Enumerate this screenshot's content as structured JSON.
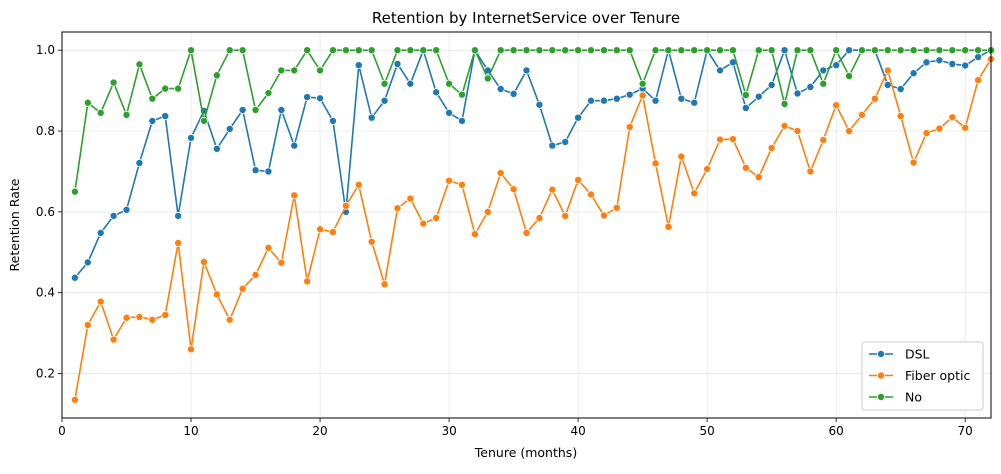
{
  "chart_data": {
    "type": "line",
    "title": "Retention by InternetService over Tenure",
    "xlabel": "Tenure (months)",
    "ylabel": "Retention Rate",
    "xlim": [
      0,
      72
    ],
    "ylim": [
      0.09,
      1.045
    ],
    "xticks": [
      0,
      10,
      20,
      30,
      40,
      50,
      60,
      70
    ],
    "yticks": [
      0.2,
      0.4,
      0.6,
      0.8,
      1.0
    ],
    "grid": true,
    "legend_position": "lower-right",
    "x": [
      1,
      2,
      3,
      4,
      5,
      6,
      7,
      8,
      9,
      10,
      11,
      12,
      13,
      14,
      15,
      16,
      17,
      18,
      19,
      20,
      21,
      22,
      23,
      24,
      25,
      26,
      27,
      28,
      29,
      30,
      31,
      32,
      33,
      34,
      35,
      36,
      37,
      38,
      39,
      40,
      41,
      42,
      43,
      44,
      45,
      46,
      47,
      48,
      49,
      50,
      51,
      52,
      53,
      54,
      55,
      56,
      57,
      58,
      59,
      60,
      61,
      62,
      63,
      64,
      65,
      66,
      67,
      68,
      69,
      70,
      71,
      72
    ],
    "series": [
      {
        "name": "DSL",
        "color": "#1f77b4",
        "values": [
          0.437,
          0.475,
          0.548,
          0.59,
          0.605,
          0.721,
          0.825,
          0.837,
          0.59,
          0.783,
          0.85,
          0.756,
          0.805,
          0.852,
          0.703,
          0.7,
          0.852,
          0.764,
          0.884,
          0.881,
          0.825,
          0.6,
          0.963,
          0.833,
          0.875,
          0.966,
          0.917,
          1.0,
          0.896,
          0.845,
          0.825,
          1.0,
          0.95,
          0.904,
          0.892,
          0.95,
          0.865,
          0.764,
          0.773,
          0.833,
          0.875,
          0.875,
          0.88,
          0.89,
          0.905,
          0.875,
          1.0,
          0.88,
          0.87,
          1.0,
          0.95,
          0.97,
          0.857,
          0.885,
          0.914,
          1.0,
          0.893,
          0.909,
          0.95,
          0.963,
          1.0,
          1.0,
          1.0,
          0.914,
          0.904,
          0.943,
          0.97,
          0.975,
          0.966,
          0.962,
          0.983,
          1.0
        ]
      },
      {
        "name": "Fiber optic",
        "color": "#ff7f0e",
        "values": [
          0.135,
          0.32,
          0.378,
          0.284,
          0.338,
          0.34,
          0.333,
          0.345,
          0.523,
          0.26,
          0.476,
          0.396,
          0.333,
          0.41,
          0.444,
          0.511,
          0.474,
          0.641,
          0.428,
          0.557,
          0.55,
          0.615,
          0.667,
          0.526,
          0.421,
          0.609,
          0.633,
          0.571,
          0.585,
          0.677,
          0.667,
          0.545,
          0.6,
          0.696,
          0.656,
          0.548,
          0.585,
          0.655,
          0.59,
          0.679,
          0.643,
          0.591,
          0.61,
          0.81,
          0.888,
          0.72,
          0.563,
          0.737,
          0.646,
          0.706,
          0.779,
          0.78,
          0.709,
          0.686,
          0.758,
          0.813,
          0.8,
          0.7,
          0.778,
          0.864,
          0.8,
          0.84,
          0.88,
          0.95,
          0.837,
          0.722,
          0.795,
          0.806,
          0.834,
          0.808,
          0.926,
          0.978
        ]
      },
      {
        "name": "No",
        "color": "#2ca02c",
        "values": [
          0.65,
          0.87,
          0.845,
          0.92,
          0.84,
          0.965,
          0.88,
          0.905,
          0.905,
          1.0,
          0.825,
          0.938,
          1.0,
          1.0,
          0.852,
          0.894,
          0.95,
          0.95,
          1.0,
          0.95,
          1.0,
          1.0,
          1.0,
          1.0,
          0.917,
          1.0,
          1.0,
          1.0,
          1.0,
          0.917,
          0.89,
          1.0,
          0.93,
          1.0,
          1.0,
          1.0,
          1.0,
          1.0,
          1.0,
          1.0,
          1.0,
          1.0,
          1.0,
          1.0,
          0.917,
          1.0,
          1.0,
          1.0,
          1.0,
          1.0,
          1.0,
          1.0,
          0.889,
          1.0,
          1.0,
          0.867,
          1.0,
          1.0,
          0.917,
          1.0,
          0.936,
          1.0,
          1.0,
          1.0,
          1.0,
          1.0,
          1.0,
          1.0,
          1.0,
          1.0,
          1.0,
          1.0
        ]
      }
    ]
  }
}
